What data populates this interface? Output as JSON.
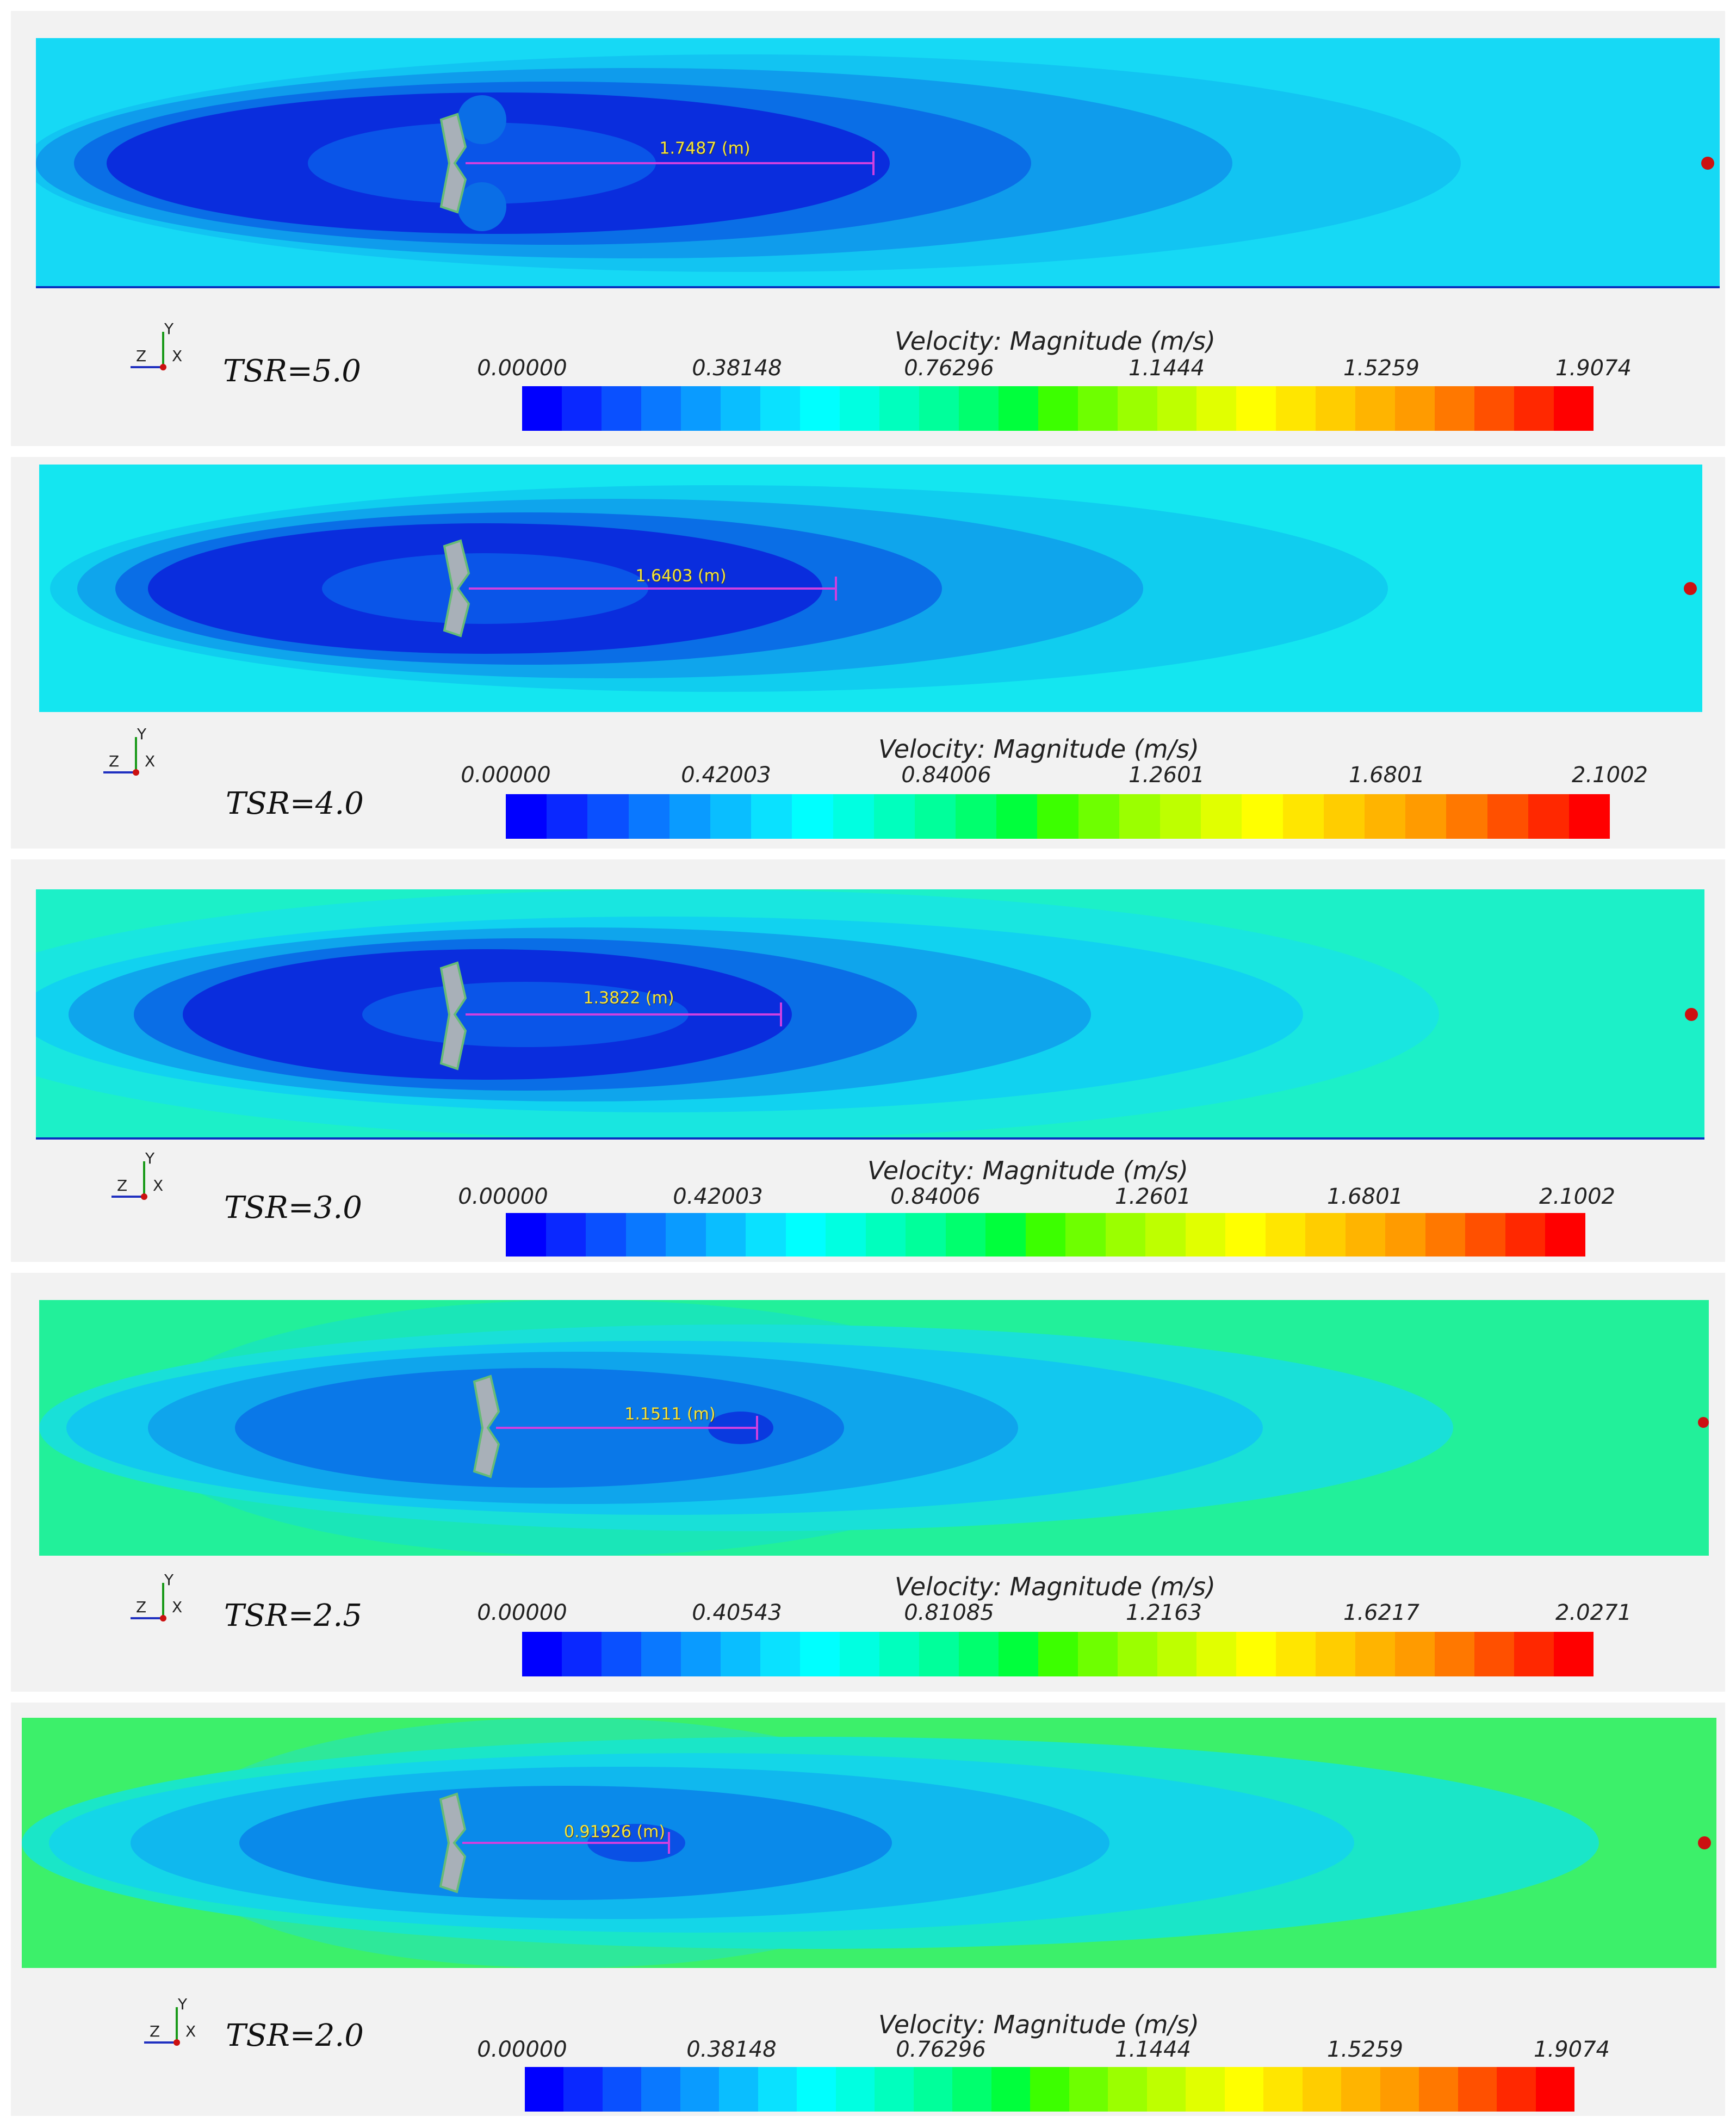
{
  "panels": [
    {
      "tsr_label": "TSR=5.0",
      "wake_length_label": "1.7487 (m)",
      "colorbar": {
        "title": "Velocity: Magnitude (m/s)",
        "ticks": [
          "0.00000",
          "0.38148",
          "0.76296",
          "1.1444",
          "1.5259",
          "1.9074"
        ]
      },
      "background_color": "#16d9f5"
    },
    {
      "tsr_label": "TSR=4.0",
      "wake_length_label": "1.6403 (m)",
      "colorbar": {
        "title": "Velocity: Magnitude (m/s)",
        "ticks": [
          "0.00000",
          "0.42003",
          "0.84006",
          "1.2601",
          "1.6801",
          "2.1002"
        ]
      },
      "background_color": "#14e6f0"
    },
    {
      "tsr_label": "TSR=3.0",
      "wake_length_label": "1.3822 (m)",
      "colorbar": {
        "title": "Velocity: Magnitude (m/s)",
        "ticks": [
          "0.00000",
          "0.42003",
          "0.84006",
          "1.2601",
          "1.6801",
          "2.1002"
        ]
      },
      "background_color": "#1cf0c8"
    },
    {
      "tsr_label": "TSR=2.5",
      "wake_length_label": "1.1511 (m)",
      "colorbar": {
        "title": "Velocity: Magnitude (m/s)",
        "ticks": [
          "0.00000",
          "0.40543",
          "0.81085",
          "1.2163",
          "1.6217",
          "2.0271"
        ]
      },
      "background_color": "#22f09a"
    },
    {
      "tsr_label": "TSR=2.0",
      "wake_length_label": "0.91926 (m)",
      "colorbar": {
        "title": "Velocity: Magnitude (m/s)",
        "ticks": [
          "0.00000",
          "0.38148",
          "0.76296",
          "1.1444",
          "1.5259",
          "1.9074"
        ]
      },
      "background_color": "#3cf06a"
    }
  ],
  "axis_labels": {
    "y": "Y",
    "z": "Z",
    "x": "X"
  },
  "colormap": [
    "#0000ff",
    "#0a28ff",
    "#0a50ff",
    "#0a78ff",
    "#0a9bff",
    "#0abeff",
    "#0ae1ff",
    "#00ffff",
    "#00ffe1",
    "#00ffbe",
    "#00ff9b",
    "#00ff6e",
    "#00ff3c",
    "#3cff00",
    "#6eff00",
    "#9bff00",
    "#beff00",
    "#e1ff00",
    "#ffff00",
    "#ffe600",
    "#ffcd00",
    "#ffb400",
    "#ff9b00",
    "#ff7800",
    "#ff5000",
    "#ff2800",
    "#ff0000"
  ]
}
